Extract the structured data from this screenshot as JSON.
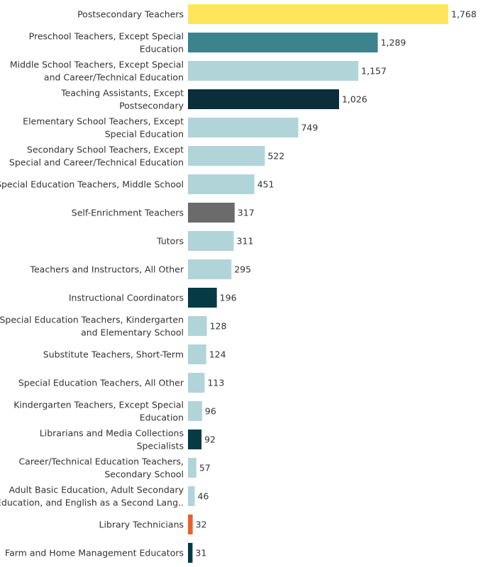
{
  "chart_data": {
    "type": "bar",
    "orientation": "horizontal",
    "title": "",
    "xlabel": "",
    "ylabel": "",
    "xlim": [
      0,
      1768
    ],
    "grid": false,
    "categories": [
      [
        "Postsecondary Teachers"
      ],
      [
        "Preschool Teachers, Except Special",
        "Education"
      ],
      [
        "Middle School Teachers, Except Special",
        "and Career/Technical Education"
      ],
      [
        "Teaching Assistants, Except",
        "Postsecondary"
      ],
      [
        "Elementary School Teachers, Except",
        "Special Education"
      ],
      [
        "Secondary School Teachers, Except",
        "Special and Career/Technical Education"
      ],
      [
        "Special Education Teachers, Middle School"
      ],
      [
        "Self-Enrichment Teachers"
      ],
      [
        "Tutors"
      ],
      [
        "Teachers and Instructors, All Other"
      ],
      [
        "Instructional Coordinators"
      ],
      [
        "Special Education Teachers, Kindergarten",
        "and Elementary School"
      ],
      [
        "Substitute Teachers, Short-Term"
      ],
      [
        "Special Education Teachers, All Other"
      ],
      [
        "Kindergarten Teachers, Except Special",
        "Education"
      ],
      [
        "Librarians and Media Collections",
        "Specialists"
      ],
      [
        "Career/Technical Education Teachers,",
        "Secondary School"
      ],
      [
        "Adult Basic Education, Adult Secondary",
        "Education, and English as a Second Lang.."
      ],
      [
        "Library Technicians"
      ],
      [
        "Farm and Home Management Educators"
      ]
    ],
    "values": [
      1768,
      1289,
      1157,
      1026,
      749,
      522,
      451,
      317,
      311,
      295,
      196,
      128,
      124,
      113,
      96,
      92,
      57,
      46,
      32,
      31
    ],
    "value_labels": [
      "1,768",
      "1,289",
      "1,157",
      "1,026",
      "749",
      "522",
      "451",
      "317",
      "311",
      "295",
      "196",
      "128",
      "124",
      "113",
      "96",
      "92",
      "57",
      "46",
      "32",
      "31"
    ],
    "colors": [
      "#FFE55C",
      "#3D838D",
      "#B1D4D9",
      "#0A2E3A",
      "#B1D4D9",
      "#B1D4D9",
      "#B1D4D9",
      "#6B6B6B",
      "#B1D4D9",
      "#B1D4D9",
      "#063A45",
      "#B1D4D9",
      "#B1D4D9",
      "#B1D4D9",
      "#B1D4D9",
      "#063A45",
      "#B1D4D9",
      "#B1D4D9",
      "#E8612C",
      "#063A45"
    ]
  }
}
